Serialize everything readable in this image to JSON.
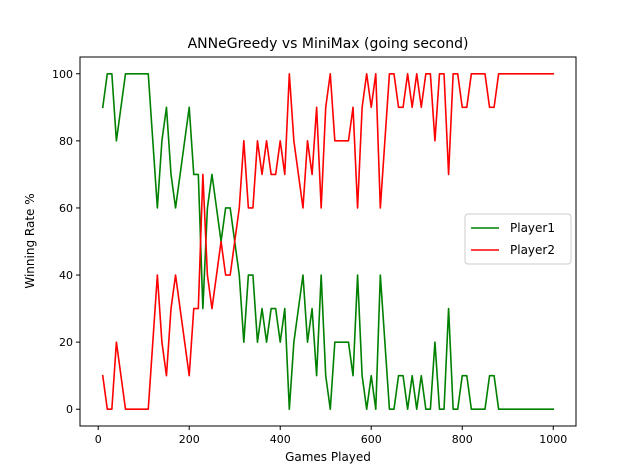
{
  "chart_data": {
    "type": "line",
    "title": "ANNeGreedy vs MiniMax (going second)",
    "xlabel": "Games Played",
    "ylabel": "Winning Rate %",
    "xlim": [
      -40,
      1050
    ],
    "ylim": [
      -5,
      105
    ],
    "xticks": [
      0,
      200,
      400,
      600,
      800,
      1000
    ],
    "yticks": [
      0,
      20,
      40,
      60,
      80,
      100
    ],
    "legend_position": "center-right",
    "grid": false,
    "x": [
      10,
      20,
      30,
      40,
      50,
      60,
      70,
      80,
      90,
      100,
      110,
      120,
      130,
      140,
      150,
      160,
      170,
      180,
      190,
      200,
      210,
      220,
      230,
      240,
      250,
      260,
      270,
      280,
      290,
      300,
      310,
      320,
      330,
      340,
      350,
      360,
      370,
      380,
      390,
      400,
      410,
      420,
      430,
      440,
      450,
      460,
      470,
      480,
      490,
      500,
      510,
      520,
      530,
      540,
      550,
      560,
      570,
      580,
      590,
      600,
      610,
      620,
      630,
      640,
      650,
      660,
      670,
      680,
      690,
      700,
      710,
      720,
      730,
      740,
      750,
      760,
      770,
      780,
      790,
      800,
      810,
      820,
      830,
      840,
      850,
      860,
      870,
      880,
      890,
      900,
      910,
      920,
      930,
      940,
      950,
      960,
      970,
      980,
      990,
      1000
    ],
    "series": [
      {
        "name": "Player1",
        "color": "#008000",
        "values": [
          90,
          100,
          100,
          80,
          90,
          100,
          100,
          100,
          100,
          100,
          100,
          80,
          60,
          80,
          90,
          70,
          60,
          70,
          80,
          90,
          70,
          70,
          30,
          60,
          70,
          60,
          50,
          60,
          60,
          50,
          40,
          20,
          40,
          40,
          20,
          30,
          20,
          30,
          30,
          20,
          30,
          0,
          20,
          30,
          40,
          20,
          30,
          10,
          40,
          10,
          0,
          20,
          20,
          20,
          20,
          10,
          40,
          10,
          0,
          10,
          0,
          40,
          20,
          0,
          0,
          10,
          10,
          0,
          10,
          0,
          10,
          0,
          0,
          20,
          0,
          0,
          30,
          0,
          0,
          10,
          10,
          0,
          0,
          0,
          0,
          10,
          10,
          0,
          0,
          0,
          0,
          0,
          0,
          0,
          0,
          0,
          0,
          0,
          0,
          0
        ]
      },
      {
        "name": "Player2",
        "color": "#ff0000",
        "values": [
          10,
          0,
          0,
          20,
          10,
          0,
          0,
          0,
          0,
          0,
          0,
          20,
          40,
          20,
          10,
          30,
          40,
          30,
          20,
          10,
          30,
          30,
          70,
          40,
          30,
          40,
          50,
          40,
          40,
          50,
          60,
          80,
          60,
          60,
          80,
          70,
          80,
          70,
          70,
          80,
          70,
          100,
          80,
          70,
          60,
          80,
          70,
          90,
          60,
          90,
          100,
          80,
          80,
          80,
          80,
          90,
          60,
          90,
          100,
          90,
          100,
          60,
          80,
          100,
          100,
          90,
          90,
          100,
          90,
          100,
          90,
          100,
          100,
          80,
          100,
          100,
          70,
          100,
          100,
          90,
          90,
          100,
          100,
          100,
          100,
          90,
          90,
          100,
          100,
          100,
          100,
          100,
          100,
          100,
          100,
          100,
          100,
          100,
          100,
          100
        ]
      }
    ]
  }
}
